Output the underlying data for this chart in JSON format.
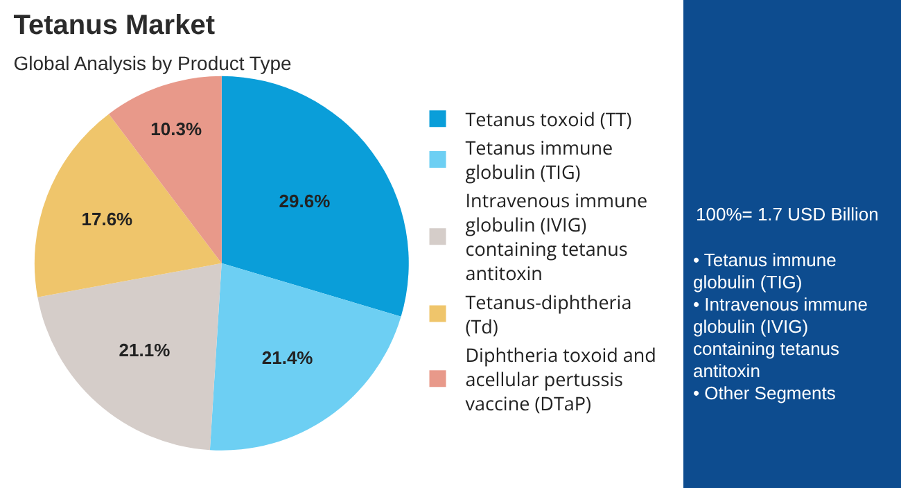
{
  "chart_data": {
    "type": "pie",
    "title": "Tetanus Market",
    "subtitle": "Global Analysis by Product Type",
    "categories": [
      "Tetanus toxoid (TT)",
      "Tetanus immune globulin (TIG)",
      "Intravenous immune globulin (IVIG) containing tetanus antitoxin",
      "Tetanus-diphtheria (Td)",
      "Diphtheria toxoid and acellular pertussis vaccine (DTaP)"
    ],
    "values": [
      29.6,
      21.4,
      21.1,
      17.6,
      10.3
    ],
    "colors": [
      "#0a9ed9",
      "#6dcff3",
      "#d5cdc9",
      "#efc56b",
      "#e8998a"
    ],
    "value_labels": [
      "29.6%",
      "21.4%",
      "21.1%",
      "17.6%",
      "10.3%"
    ],
    "legend": "right",
    "annotations": [
      "100%= 1.7 USD Billion",
      "• Tetanus immune globulin (TIG)",
      "• Intravenous immune globulin (IVIG) containing tetanus antitoxin",
      "• Other Segments"
    ]
  }
}
